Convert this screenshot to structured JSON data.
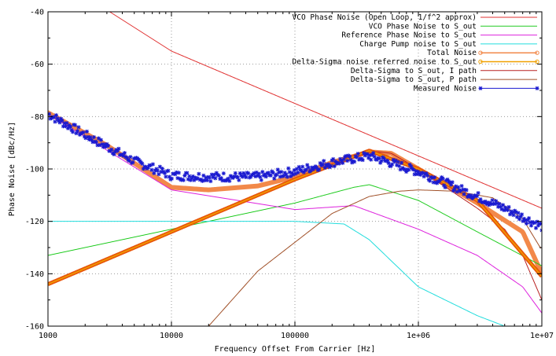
{
  "chart_data": {
    "type": "line",
    "xscale": "log",
    "xlim": [
      1000,
      10000000
    ],
    "ylim": [
      -160,
      -40
    ],
    "xlabel": "Frequency Offset From Carrier [Hz]",
    "ylabel": "Phase Noise [dBc/Hz]",
    "grid": true,
    "legend_position": "top-right",
    "x_ticks": [
      {
        "value": 1000,
        "label": "1000"
      },
      {
        "value": 10000,
        "label": "10000"
      },
      {
        "value": 100000,
        "label": "100000"
      },
      {
        "value": 1000000,
        "label": "1e+06"
      },
      {
        "value": 10000000,
        "label": "1e+07"
      }
    ],
    "y_ticks": [
      {
        "value": -40,
        "label": "-40"
      },
      {
        "value": -60,
        "label": "-60"
      },
      {
        "value": -80,
        "label": "-80"
      },
      {
        "value": -100,
        "label": "-100"
      },
      {
        "value": -120,
        "label": "-120"
      },
      {
        "value": -140,
        "label": "-140"
      },
      {
        "value": -160,
        "label": "-160"
      }
    ],
    "series": [
      {
        "name": "VCO Phase Noise (Open Loop, 1/f^2 approx)",
        "color": "#e03030",
        "style": "line",
        "x": [
          1000,
          10000,
          100000,
          1000000,
          10000000
        ],
        "y": [
          -25,
          -55,
          -75,
          -95,
          -115
        ]
      },
      {
        "name": "VCO Phase Noise to S_out",
        "color": "#22cc22",
        "style": "line",
        "x": [
          1000,
          10000,
          100000,
          300000,
          400000,
          1000000,
          3000000,
          10000000
        ],
        "y": [
          -133,
          -123,
          -113,
          -107,
          -106,
          -112,
          -124,
          -137
        ]
      },
      {
        "name": "Reference Phase Noise to S_out",
        "color": "#dd22dd",
        "style": "line",
        "x": [
          1000,
          10000,
          100000,
          300000,
          1000000,
          3000000,
          7000000,
          10000000
        ],
        "y": [
          -79,
          -108,
          -115.5,
          -114,
          -123,
          -133,
          -145,
          -155
        ]
      },
      {
        "name": "Charge Pump noise to S_out",
        "color": "#22dddd",
        "style": "line",
        "x": [
          1000,
          10000,
          100000,
          250000,
          400000,
          700000,
          1000000,
          3000000,
          5000000
        ],
        "y": [
          -120,
          -120,
          -120,
          -121,
          -127,
          -138,
          -145,
          -156,
          -160
        ]
      },
      {
        "name": "Total Noise",
        "color": "#f2894a",
        "style": "thick-line-points",
        "x": [
          1000,
          3000,
          10000,
          20000,
          50000,
          100000,
          200000,
          400000,
          600000,
          1000000,
          3000000,
          7000000,
          10000000
        ],
        "y": [
          -78.5,
          -91,
          -107,
          -108,
          -106.5,
          -103,
          -97.5,
          -93.5,
          -94,
          -100,
          -113,
          -124,
          -140
        ]
      },
      {
        "name": "Delta-Sigma  noise referred noise to S_out",
        "color": "#f0a000",
        "style": "line-points",
        "x": [
          1000,
          100000,
          400000,
          1000000,
          3000000,
          10000000
        ],
        "y": [
          -144,
          -104,
          -93,
          -100,
          -112,
          -141
        ]
      },
      {
        "name": "Delta-Sigma to S_out, I path",
        "color": "#b82020",
        "style": "line",
        "x": [
          1000,
          100000,
          400000,
          600000,
          1000000,
          3000000,
          5000000,
          7000000,
          10000000
        ],
        "y": [
          -144,
          -104,
          -93,
          -94,
          -100,
          -115,
          -123,
          -133,
          -150
        ]
      },
      {
        "name": "Delta-Sigma to S_out, P path",
        "color": "#a05028",
        "style": "line",
        "x": [
          20000,
          50000,
          100000,
          200000,
          400000,
          700000,
          1000000,
          2000000,
          4000000,
          7000000,
          10000000
        ],
        "y": [
          -160,
          -139,
          -128,
          -117,
          -110.5,
          -108.5,
          -108,
          -108.5,
          -111,
          -119,
          -131
        ]
      },
      {
        "name": "Measured Noise",
        "color": "#1a1ad0",
        "style": "points",
        "x": [
          1000,
          2000,
          5000,
          10000,
          20000,
          50000,
          100000,
          200000,
          400000,
          1000000,
          2000000,
          5000000,
          10000000
        ],
        "y": [
          -79,
          -87,
          -97,
          -102.5,
          -103,
          -103,
          -101,
          -97.5,
          -95,
          -101,
          -107,
          -115,
          -122
        ]
      }
    ]
  }
}
